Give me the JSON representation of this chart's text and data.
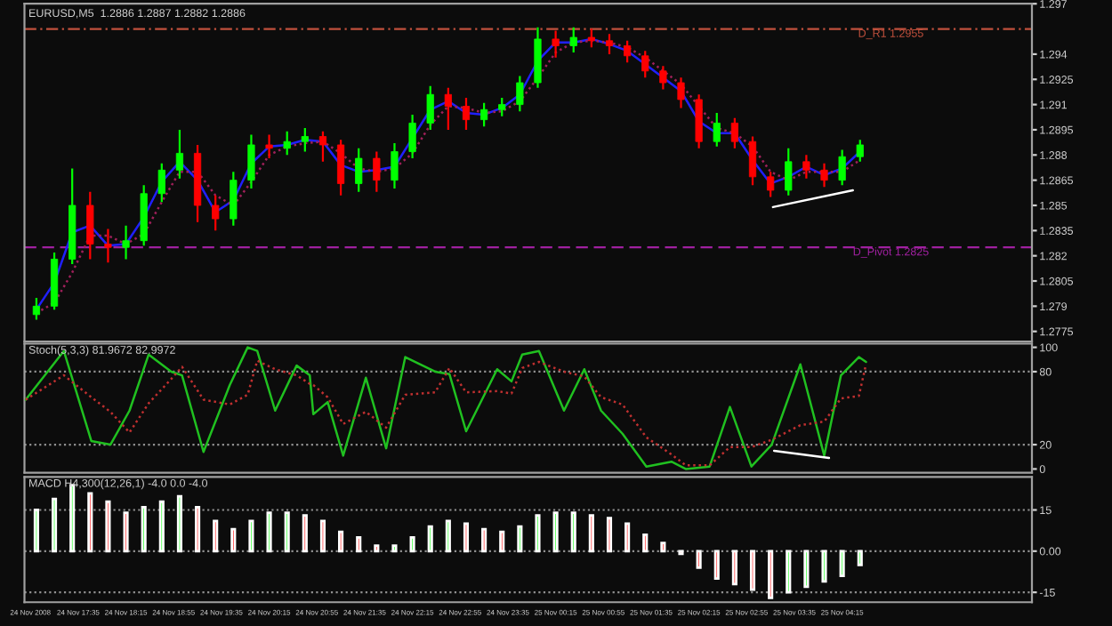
{
  "chart_data": [
    {
      "type": "candlestick",
      "title": "EURUSD,M5  1.2886 1.2887 1.2882 1.2886",
      "tick_labels": "y",
      "grid": false,
      "x": [
        "2008-11-24T17:00",
        "2008-11-24T17:15",
        "2008-11-24T17:30",
        "2008-11-24T17:45",
        "2008-11-24T18:00",
        "2008-11-24T18:15",
        "2008-11-24T18:30",
        "2008-11-24T18:45",
        "2008-11-24T19:00",
        "2008-11-24T19:15",
        "2008-11-24T19:30",
        "2008-11-24T19:45",
        "2008-11-24T20:00",
        "2008-11-24T20:15",
        "2008-11-24T20:30",
        "2008-11-24T20:45",
        "2008-11-24T21:00",
        "2008-11-24T21:15",
        "2008-11-24T21:30",
        "2008-11-24T21:45",
        "2008-11-24T22:00",
        "2008-11-24T22:15",
        "2008-11-24T22:30",
        "2008-11-24T22:45",
        "2008-11-24T23:00",
        "2008-11-24T23:15",
        "2008-11-24T23:30",
        "2008-11-24T23:45",
        "2008-11-25T00:00",
        "2008-11-25T00:15",
        "2008-11-25T00:30",
        "2008-11-25T00:45",
        "2008-11-25T01:00",
        "2008-11-25T01:15",
        "2008-11-25T01:30",
        "2008-11-25T01:45",
        "2008-11-25T02:00",
        "2008-11-25T02:15",
        "2008-11-25T02:30",
        "2008-11-25T02:45",
        "2008-11-25T03:00",
        "2008-11-25T03:15",
        "2008-11-25T03:30",
        "2008-11-25T03:45",
        "2008-11-25T04:00",
        "2008-11-25T04:15",
        "2008-11-25T04:30"
      ],
      "ohlc": [
        [
          1.2785,
          1.2795,
          1.2782,
          1.279
        ],
        [
          1.279,
          1.2822,
          1.2788,
          1.2818
        ],
        [
          1.2818,
          1.2872,
          1.2815,
          1.285
        ],
        [
          1.285,
          1.2858,
          1.2818,
          1.2827
        ],
        [
          1.2827,
          1.2836,
          1.2816,
          1.2825
        ],
        [
          1.2825,
          1.2838,
          1.2818,
          1.2829
        ],
        [
          1.2829,
          1.2862,
          1.2826,
          1.2857
        ],
        [
          1.2857,
          1.2875,
          1.2852,
          1.2871
        ],
        [
          1.2871,
          1.2895,
          1.2866,
          1.2881
        ],
        [
          1.2881,
          1.2886,
          1.284,
          1.285
        ],
        [
          1.285,
          1.2856,
          1.2835,
          1.2842
        ],
        [
          1.2842,
          1.287,
          1.2838,
          1.2865
        ],
        [
          1.2865,
          1.2892,
          1.286,
          1.2886
        ],
        [
          1.2886,
          1.2892,
          1.2878,
          1.2884
        ],
        [
          1.2884,
          1.2894,
          1.288,
          1.2888
        ],
        [
          1.2888,
          1.2896,
          1.2882,
          1.2891
        ],
        [
          1.2891,
          1.2894,
          1.2876,
          1.2886
        ],
        [
          1.2886,
          1.2889,
          1.2856,
          1.2863
        ],
        [
          1.2863,
          1.2884,
          1.2858,
          1.2878
        ],
        [
          1.2878,
          1.2882,
          1.2858,
          1.2865
        ],
        [
          1.2865,
          1.2887,
          1.286,
          1.2882
        ],
        [
          1.2882,
          1.2904,
          1.2878,
          1.2899
        ],
        [
          1.2899,
          1.2921,
          1.2895,
          1.2916
        ],
        [
          1.2916,
          1.292,
          1.2895,
          1.2909
        ],
        [
          1.2909,
          1.2914,
          1.2895,
          1.2901
        ],
        [
          1.2901,
          1.2911,
          1.2897,
          1.2907
        ],
        [
          1.2907,
          1.2914,
          1.2903,
          1.291
        ],
        [
          1.291,
          1.2927,
          1.2906,
          1.2923
        ],
        [
          1.2923,
          1.2956,
          1.292,
          1.2949
        ],
        [
          1.2949,
          1.2954,
          1.2938,
          1.2945
        ],
        [
          1.2945,
          1.2956,
          1.2941,
          1.295
        ],
        [
          1.295,
          1.2955,
          1.2944,
          1.2948
        ],
        [
          1.2948,
          1.2952,
          1.294,
          1.2945
        ],
        [
          1.2945,
          1.2948,
          1.2935,
          1.2939
        ],
        [
          1.2939,
          1.2942,
          1.2926,
          1.293
        ],
        [
          1.293,
          1.2933,
          1.2919,
          1.2923
        ],
        [
          1.2923,
          1.2926,
          1.2908,
          1.2913
        ],
        [
          1.2913,
          1.2916,
          1.2884,
          1.2888
        ],
        [
          1.2888,
          1.2905,
          1.2885,
          1.2899
        ],
        [
          1.2899,
          1.2902,
          1.2884,
          1.2888
        ],
        [
          1.2888,
          1.2891,
          1.2862,
          1.2867
        ],
        [
          1.2867,
          1.287,
          1.2855,
          1.2859
        ],
        [
          1.2859,
          1.2884,
          1.2856,
          1.2876
        ],
        [
          1.2876,
          1.288,
          1.2866,
          1.2871
        ],
        [
          1.2871,
          1.2875,
          1.2861,
          1.2865
        ],
        [
          1.2865,
          1.2883,
          1.2862,
          1.2879
        ],
        [
          1.2879,
          1.2889,
          1.2876,
          1.2886
        ]
      ],
      "colors": [
        "#00ff00",
        "#00ff00",
        "#00ff00",
        "#ff0000",
        "#ff0000",
        "#00ff00",
        "#00ff00",
        "#00ff00",
        "#00ff00",
        "#ff0000",
        "#ff0000",
        "#00ff00",
        "#00ff00",
        "#ff0000",
        "#00ff00",
        "#00ff00",
        "#ff0000",
        "#ff0000",
        "#00ff00",
        "#ff0000",
        "#00ff00",
        "#00ff00",
        "#00ff00",
        "#ff0000",
        "#ff0000",
        "#00ff00",
        "#00ff00",
        "#00ff00",
        "#00ff00",
        "#ff0000",
        "#00ff00",
        "#ff0000",
        "#ff0000",
        "#ff0000",
        "#ff0000",
        "#ff0000",
        "#ff0000",
        "#ff0000",
        "#00ff00",
        "#ff0000",
        "#ff0000",
        "#ff0000",
        "#00ff00",
        "#ff0000",
        "#ff0000",
        "#00ff00",
        "#00ff00"
      ],
      "series": [
        {
          "type": "line",
          "color": "#2020ff",
          "line_style": "solid",
          "values": [
            1.2788,
            1.2804,
            1.2834,
            1.2838,
            1.2826,
            1.2827,
            1.2843,
            1.2864,
            1.2876,
            1.2865,
            1.2846,
            1.2853,
            1.2875,
            1.2885,
            1.2886,
            1.2889,
            1.2888,
            1.2874,
            1.287,
            1.2871,
            1.2873,
            1.289,
            1.2907,
            1.2912,
            1.2905,
            1.2904,
            1.2908,
            1.2916,
            1.2936,
            1.2947,
            1.2947,
            1.2949,
            1.2946,
            1.2942,
            1.2934,
            1.2926,
            1.2918,
            1.29,
            1.2893,
            1.2893,
            1.2877,
            1.2863,
            1.2867,
            1.2873,
            1.2868,
            1.2872,
            1.2882
          ]
        },
        {
          "type": "line",
          "color": "#a0205a",
          "line_style": "dotted",
          "values": [
            1.2786,
            1.2792,
            1.281,
            1.2832,
            1.2832,
            1.2827,
            1.2833,
            1.2852,
            1.287,
            1.287,
            1.2856,
            1.285,
            1.2864,
            1.288,
            1.2885,
            1.2887,
            1.2888,
            1.2881,
            1.2872,
            1.287,
            1.2872,
            1.2881,
            1.2898,
            1.2909,
            1.2908,
            1.2905,
            1.2906,
            1.2912,
            1.2926,
            1.2941,
            1.2947,
            1.2948,
            1.2947,
            1.2944,
            1.2938,
            1.293,
            1.2922,
            1.2909,
            1.2896,
            1.2893,
            1.2885,
            1.287,
            1.2865,
            1.287,
            1.287,
            1.287,
            1.2877
          ]
        },
        {
          "type": "line",
          "color": "#ffffff",
          "line_style": "solid",
          "x": [
            "2008-11-25T03:17",
            "2008-11-25T04:24"
          ],
          "values": [
            1.2849,
            1.2859
          ]
        }
      ],
      "xlim": [
        "2008-11-24T16:50",
        "2008-11-25T06:54"
      ],
      "ylim": [
        1.2769,
        1.297
      ],
      "yticks": [
        1.2775,
        1.279,
        1.2805,
        1.282,
        1.2835,
        1.285,
        1.2865,
        1.288,
        1.2895,
        1.291,
        1.2925,
        1.294,
        1.297
      ],
      "ref_lines": [
        {
          "axis": "y",
          "value": 1.2955,
          "label": "D_R1 1.2955",
          "color": "#c0503c",
          "line_style": "dashdot"
        },
        {
          "axis": "y",
          "value": 1.2825,
          "label": "D_Pivot 1.2825",
          "color": "#a020a0",
          "line_style": "dashed"
        }
      ]
    },
    {
      "type": "line",
      "title": "Stoch(5,3,3) 81.9672 82.9972",
      "tick_labels": "y",
      "grid": false,
      "series": [
        {
          "color": "#20c020",
          "line_style": "solid",
          "x": [
            "2008-11-24T16:51",
            "2008-11-24T17:23",
            "2008-11-24T17:46",
            "2008-11-24T18:02",
            "2008-11-24T18:18",
            "2008-11-24T18:34",
            "2008-11-24T18:53",
            "2008-11-24T19:02",
            "2008-11-24T19:20",
            "2008-11-24T19:42",
            "2008-11-24T19:57",
            "2008-11-24T20:05",
            "2008-11-24T20:20",
            "2008-11-24T20:38",
            "2008-11-24T20:49",
            "2008-11-24T20:52",
            "2008-11-24T21:04",
            "2008-11-24T21:17",
            "2008-11-24T21:36",
            "2008-11-24T21:53",
            "2008-11-24T22:09",
            "2008-11-24T22:34",
            "2008-11-24T22:46",
            "2008-11-24T23:00",
            "2008-11-24T23:26",
            "2008-11-24T23:38",
            "2008-11-24T23:47",
            "2008-11-25T00:01",
            "2008-11-25T00:22",
            "2008-11-25T00:39",
            "2008-11-25T00:53",
            "2008-11-25T01:11",
            "2008-11-25T01:31",
            "2008-11-25T01:52",
            "2008-11-25T02:04",
            "2008-11-25T02:24",
            "2008-11-25T02:41",
            "2008-11-25T02:59",
            "2008-11-25T03:16",
            "2008-11-25T03:40",
            "2008-11-25T04:00",
            "2008-11-25T04:14",
            "2008-11-25T04:29",
            "2008-11-25T04:35"
          ],
          "values": [
            57,
            97,
            23,
            20,
            48,
            94,
            80,
            77,
            14,
            69,
            100,
            97,
            48,
            85,
            77,
            45,
            55,
            11,
            75,
            17,
            92,
            80,
            78,
            31,
            82,
            72,
            94,
            97,
            48,
            82,
            48,
            29,
            2,
            6,
            0,
            2,
            51,
            2,
            20,
            86,
            11,
            77,
            92,
            88
          ]
        },
        {
          "color": "#c03030",
          "line_style": "dotted",
          "x": [
            "2008-11-24T16:51",
            "2008-11-24T17:23",
            "2008-11-24T17:46",
            "2008-11-24T18:02",
            "2008-11-24T18:18",
            "2008-11-24T18:34",
            "2008-11-24T18:53",
            "2008-11-24T19:02",
            "2008-11-24T19:20",
            "2008-11-24T19:42",
            "2008-11-24T19:57",
            "2008-11-24T20:05",
            "2008-11-24T20:20",
            "2008-11-24T20:38",
            "2008-11-24T20:49",
            "2008-11-24T20:52",
            "2008-11-24T21:04",
            "2008-11-24T21:17",
            "2008-11-24T21:36",
            "2008-11-24T21:53",
            "2008-11-24T22:09",
            "2008-11-24T22:34",
            "2008-11-24T22:46",
            "2008-11-24T23:00",
            "2008-11-24T23:26",
            "2008-11-24T23:38",
            "2008-11-24T23:47",
            "2008-11-25T00:01",
            "2008-11-25T00:22",
            "2008-11-25T00:39",
            "2008-11-25T00:53",
            "2008-11-25T01:11",
            "2008-11-25T01:31",
            "2008-11-25T01:52",
            "2008-11-25T02:04",
            "2008-11-25T02:24",
            "2008-11-25T02:41",
            "2008-11-25T02:59",
            "2008-11-25T03:16",
            "2008-11-25T03:40",
            "2008-11-25T04:00",
            "2008-11-25T04:14",
            "2008-11-25T04:29",
            "2008-11-25T04:35"
          ],
          "values": [
            57,
            77,
            59,
            47,
            30,
            54,
            74,
            84,
            57,
            53,
            61,
            89,
            82,
            77,
            70,
            69,
            59,
            37,
            47,
            34,
            61,
            63,
            83,
            63,
            64,
            62,
            83,
            88,
            80,
            76,
            59,
            53,
            26,
            12,
            3,
            3,
            18,
            18,
            24,
            36,
            39,
            58,
            60,
            86
          ]
        },
        {
          "color": "#ffffff",
          "line_style": "solid",
          "x": [
            "2008-11-25T03:18",
            "2008-11-25T04:04"
          ],
          "values": [
            15,
            9
          ]
        }
      ],
      "xlim": [
        "2008-11-24T16:50",
        "2008-11-25T06:54"
      ],
      "ylim": [
        -3,
        103
      ],
      "yticks": [
        0,
        20,
        80,
        100
      ],
      "ref_lines": [
        {
          "axis": "y",
          "value": 20,
          "color": "#909090",
          "line_style": "dotted"
        },
        {
          "axis": "y",
          "value": 80,
          "color": "#909090",
          "line_style": "dotted"
        }
      ]
    },
    {
      "type": "bar",
      "title": "MACD H4,300(12,26,1) -4.0 0.0 -4.0",
      "grid": false,
      "x": [
        "2008-11-24T17:00",
        "2008-11-24T17:15",
        "2008-11-24T17:30",
        "2008-11-24T17:45",
        "2008-11-24T18:00",
        "2008-11-24T18:15",
        "2008-11-24T18:30",
        "2008-11-24T18:45",
        "2008-11-24T19:00",
        "2008-11-24T19:15",
        "2008-11-24T19:30",
        "2008-11-24T19:45",
        "2008-11-24T20:00",
        "2008-11-24T20:15",
        "2008-11-24T20:30",
        "2008-11-24T20:45",
        "2008-11-24T21:00",
        "2008-11-24T21:15",
        "2008-11-24T21:30",
        "2008-11-24T21:45",
        "2008-11-24T22:00",
        "2008-11-24T22:15",
        "2008-11-24T22:30",
        "2008-11-24T22:45",
        "2008-11-24T23:00",
        "2008-11-24T23:15",
        "2008-11-24T23:30",
        "2008-11-24T23:45",
        "2008-11-25T00:00",
        "2008-11-25T00:15",
        "2008-11-25T00:30",
        "2008-11-25T00:45",
        "2008-11-25T01:00",
        "2008-11-25T01:15",
        "2008-11-25T01:30",
        "2008-11-25T01:45",
        "2008-11-25T02:00",
        "2008-11-25T02:15",
        "2008-11-25T02:30",
        "2008-11-25T02:45",
        "2008-11-25T03:00",
        "2008-11-25T03:15",
        "2008-11-25T03:30",
        "2008-11-25T03:45",
        "2008-11-25T04:00",
        "2008-11-25T04:15",
        "2008-11-25T04:30"
      ],
      "values": [
        15,
        19,
        24,
        21,
        18,
        14,
        16,
        18,
        20,
        16,
        11,
        8,
        11,
        14,
        14,
        13,
        11,
        7,
        5,
        2,
        2,
        5,
        9,
        11,
        10,
        8,
        7,
        9,
        13,
        14,
        14,
        13,
        12,
        10,
        6,
        3,
        -1,
        -6,
        -10,
        -12,
        -14,
        -17,
        -15,
        -13,
        -11,
        -9,
        -5
      ],
      "colors": [
        "#00ff00",
        "#00ff00",
        "#00ff00",
        "#ff0000",
        "#ff0000",
        "#ff0000",
        "#00ff00",
        "#00ff00",
        "#00ff00",
        "#ff0000",
        "#ff0000",
        "#ff0000",
        "#00ff00",
        "#00ff00",
        "#00ff00",
        "#ff0000",
        "#ff0000",
        "#ff0000",
        "#ff0000",
        "#ff0000",
        "#00ff00",
        "#00ff00",
        "#00ff00",
        "#00ff00",
        "#ff0000",
        "#ff0000",
        "#ff0000",
        "#00ff00",
        "#00ff00",
        "#00ff00",
        "#00ff00",
        "#ff0000",
        "#ff0000",
        "#ff0000",
        "#ff0000",
        "#ff0000",
        "#ff0000",
        "#ff0000",
        "#ff0000",
        "#ff0000",
        "#ff0000",
        "#ff0000",
        "#00ff00",
        "#00ff00",
        "#00ff00",
        "#00ff00",
        "#00ff00"
      ],
      "xlim": [
        "2008-11-24T16:50",
        "2008-11-25T06:54"
      ],
      "ylim": [
        -18.6,
        27
      ],
      "yticks": [
        -15,
        {
          "value": 0,
          "label": "0.00"
        },
        15
      ],
      "xticks": [
        {
          "value": "2008-11-24T16:55",
          "label": "24 Nov 2008"
        },
        {
          "value": "2008-11-24T17:35",
          "label": "24 Nov 17:35"
        },
        {
          "value": "2008-11-24T18:15",
          "label": "24 Nov 18:15"
        },
        {
          "value": "2008-11-24T18:55",
          "label": "24 Nov 18:55"
        },
        {
          "value": "2008-11-24T19:35",
          "label": "24 Nov 19:35"
        },
        {
          "value": "2008-11-24T20:15",
          "label": "24 Nov 20:15"
        },
        {
          "value": "2008-11-24T20:55",
          "label": "24 Nov 20:55"
        },
        {
          "value": "2008-11-24T21:35",
          "label": "24 Nov 21:35"
        },
        {
          "value": "2008-11-24T22:15",
          "label": "24 Nov 22:15"
        },
        {
          "value": "2008-11-24T22:55",
          "label": "24 Nov 22:55"
        },
        {
          "value": "2008-11-24T23:35",
          "label": "24 Nov 23:35"
        },
        {
          "value": "2008-11-25T00:15",
          "label": "25 Nov 00:15"
        },
        {
          "value": "2008-11-25T00:55",
          "label": "25 Nov 00:55"
        },
        {
          "value": "2008-11-25T01:35",
          "label": "25 Nov 01:35"
        },
        {
          "value": "2008-11-25T02:15",
          "label": "25 Nov 02:15"
        },
        {
          "value": "2008-11-25T02:55",
          "label": "25 Nov 02:55"
        },
        {
          "value": "2008-11-25T03:35",
          "label": "25 Nov 03:35"
        },
        {
          "value": "2008-11-25T04:15",
          "label": "25 Nov 04:15"
        }
      ],
      "ref_lines": [
        {
          "axis": "y",
          "value": 15,
          "color": "#909090",
          "line_style": "dotted"
        },
        {
          "axis": "y",
          "value": 0,
          "color": "#909090",
          "line_style": "dotted"
        },
        {
          "axis": "y",
          "value": -15,
          "color": "#909090",
          "line_style": "dotted"
        }
      ]
    }
  ]
}
